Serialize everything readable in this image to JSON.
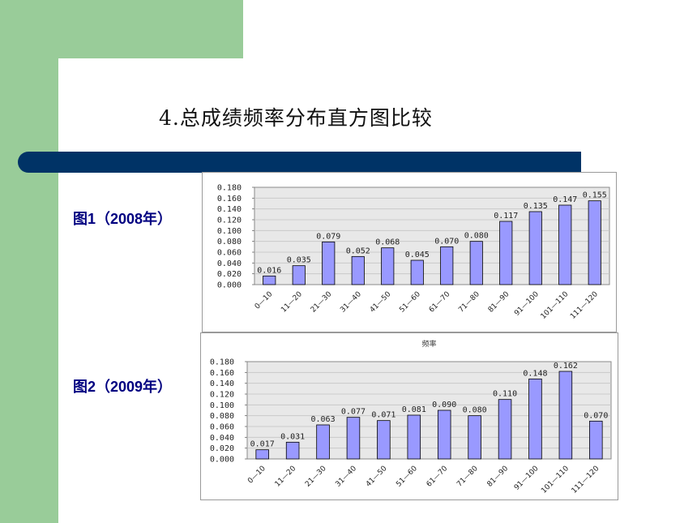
{
  "slide": {
    "title": "4.总成绩频率分布直方图比较",
    "colors": {
      "green": "#99cc99",
      "navy": "#003366",
      "bar": "#9999ff",
      "label": "#000080"
    }
  },
  "figures": [
    {
      "label": "图1（2008年）"
    },
    {
      "label": "图2（2009年）"
    }
  ],
  "chart_data": [
    {
      "type": "bar",
      "title": "",
      "categories": [
        "0—10",
        "11—20",
        "21—30",
        "31—40",
        "41—50",
        "51—60",
        "61—70",
        "71—80",
        "81—90",
        "91—100",
        "101—110",
        "111—120"
      ],
      "values": [
        0.016,
        0.035,
        0.079,
        0.052,
        0.068,
        0.045,
        0.07,
        0.08,
        0.117,
        0.135,
        0.147,
        0.155
      ],
      "value_labels": [
        "0.016",
        "0.035",
        "0.079",
        "0.052",
        "0.068",
        "0.045",
        "0.070",
        "0.080",
        "0.117",
        "0.135",
        "0.147",
        "0.155"
      ],
      "yticks": [
        "0.000",
        "0.020",
        "0.040",
        "0.060",
        "0.080",
        "0.100",
        "0.120",
        "0.140",
        "0.160",
        "0.180"
      ],
      "ylim": [
        0,
        0.18
      ],
      "grid": true
    },
    {
      "type": "bar",
      "title": "频率",
      "categories": [
        "0—10",
        "11—20",
        "21—30",
        "31—40",
        "41—50",
        "51—60",
        "61—70",
        "71—80",
        "81—90",
        "91—100",
        "101—110",
        "111—120"
      ],
      "values": [
        0.017,
        0.031,
        0.063,
        0.077,
        0.071,
        0.081,
        0.09,
        0.08,
        0.11,
        0.148,
        0.162,
        0.07
      ],
      "value_labels": [
        "0.017",
        "0.031",
        "0.063",
        "0.077",
        "0.071",
        "0.081",
        "0.090",
        "0.080",
        "0.110",
        "0.148",
        "0.162",
        "0.070"
      ],
      "yticks": [
        "0.000",
        "0.020",
        "0.040",
        "0.060",
        "0.080",
        "0.100",
        "0.120",
        "0.140",
        "0.160",
        "0.180"
      ],
      "ylim": [
        0,
        0.18
      ],
      "grid": true
    }
  ]
}
